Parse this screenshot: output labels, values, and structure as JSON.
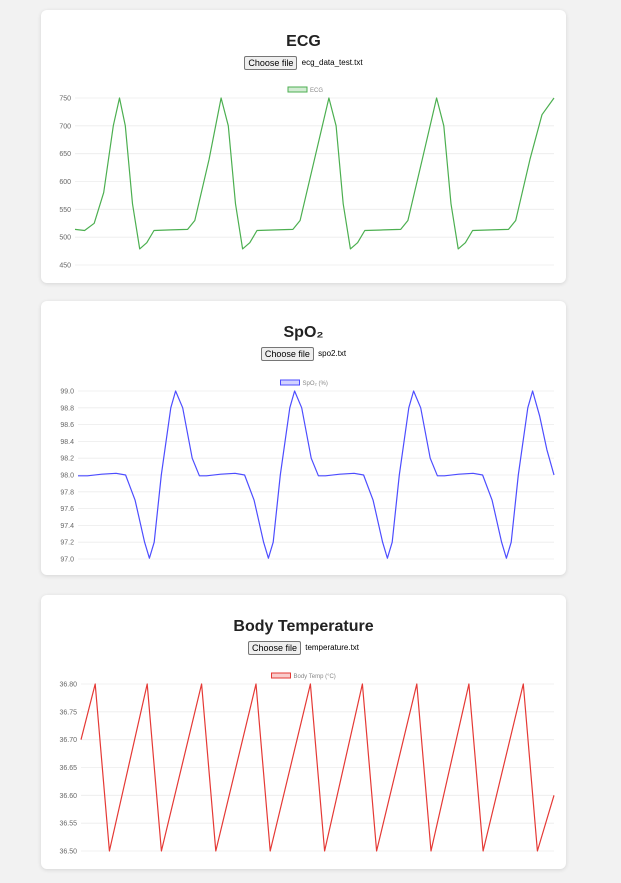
{
  "charts": {
    "ecg": {
      "title": "ECG",
      "button_label": "Choose file",
      "file_name": "ecg_data_test.txt"
    },
    "spo2": {
      "title": "SpO₂",
      "button_label": "Choose file",
      "file_name": "spo2.txt"
    },
    "temp": {
      "title": "Body Temperature",
      "button_label": "Choose file",
      "file_name": "temperature.txt"
    }
  },
  "chart_data": [
    {
      "id": "ecg",
      "type": "line",
      "title": "ECG",
      "series": [
        {
          "name": "ECG",
          "color": "#4caf50"
        }
      ],
      "ylim": [
        450,
        750
      ],
      "yticks": [
        "750",
        "700",
        "650",
        "600",
        "550",
        "500",
        "450"
      ],
      "grid": true,
      "legend": "top-center",
      "points": [
        [
          0.0,
          514
        ],
        [
          0.02,
          512
        ],
        [
          0.04,
          525
        ],
        [
          0.06,
          580
        ],
        [
          0.08,
          700
        ],
        [
          0.093,
          750
        ],
        [
          0.105,
          700
        ],
        [
          0.12,
          560
        ],
        [
          0.135,
          479
        ],
        [
          0.15,
          490
        ],
        [
          0.165,
          512
        ],
        [
          0.2,
          513
        ],
        [
          0.235,
          514
        ],
        [
          0.25,
          530
        ],
        [
          0.28,
          640
        ],
        [
          0.305,
          750
        ],
        [
          0.32,
          700
        ],
        [
          0.335,
          560
        ],
        [
          0.35,
          479
        ],
        [
          0.365,
          490
        ],
        [
          0.38,
          512
        ],
        [
          0.42,
          513
        ],
        [
          0.455,
          514
        ],
        [
          0.47,
          530
        ],
        [
          0.5,
          640
        ],
        [
          0.53,
          750
        ],
        [
          0.545,
          700
        ],
        [
          0.56,
          560
        ],
        [
          0.575,
          479
        ],
        [
          0.59,
          490
        ],
        [
          0.605,
          512
        ],
        [
          0.645,
          513
        ],
        [
          0.68,
          514
        ],
        [
          0.695,
          530
        ],
        [
          0.725,
          640
        ],
        [
          0.755,
          750
        ],
        [
          0.77,
          700
        ],
        [
          0.785,
          560
        ],
        [
          0.8,
          479
        ],
        [
          0.815,
          490
        ],
        [
          0.83,
          512
        ],
        [
          0.87,
          513
        ],
        [
          0.905,
          514
        ],
        [
          0.92,
          530
        ],
        [
          0.95,
          640
        ],
        [
          0.975,
          720
        ],
        [
          1.0,
          750
        ]
      ]
    },
    {
      "id": "spo2",
      "type": "line",
      "title": "SpO₂",
      "series": [
        {
          "name": "SpO₂ (%)",
          "color": "#4d4dff"
        }
      ],
      "ylim": [
        97.0,
        99.0
      ],
      "yticks": [
        "99.0",
        "98.8",
        "98.6",
        "98.4",
        "98.2",
        "98.0",
        "97.8",
        "97.6",
        "97.4",
        "97.2",
        "97.0"
      ],
      "grid": true,
      "legend": "top-center",
      "points": [
        [
          0.0,
          97.99
        ],
        [
          0.02,
          97.99
        ],
        [
          0.05,
          98.01
        ],
        [
          0.08,
          98.02
        ],
        [
          0.1,
          98.0
        ],
        [
          0.12,
          97.7
        ],
        [
          0.14,
          97.2
        ],
        [
          0.15,
          97.01
        ],
        [
          0.16,
          97.2
        ],
        [
          0.175,
          98.0
        ],
        [
          0.195,
          98.8
        ],
        [
          0.205,
          99.0
        ],
        [
          0.22,
          98.8
        ],
        [
          0.24,
          98.2
        ],
        [
          0.255,
          97.99
        ],
        [
          0.27,
          97.99
        ],
        [
          0.3,
          98.01
        ],
        [
          0.33,
          98.02
        ],
        [
          0.35,
          98.0
        ],
        [
          0.37,
          97.7
        ],
        [
          0.39,
          97.2
        ],
        [
          0.4,
          97.01
        ],
        [
          0.41,
          97.2
        ],
        [
          0.425,
          98.0
        ],
        [
          0.445,
          98.8
        ],
        [
          0.455,
          99.0
        ],
        [
          0.47,
          98.8
        ],
        [
          0.49,
          98.2
        ],
        [
          0.505,
          97.99
        ],
        [
          0.52,
          97.99
        ],
        [
          0.55,
          98.01
        ],
        [
          0.58,
          98.02
        ],
        [
          0.6,
          98.0
        ],
        [
          0.62,
          97.7
        ],
        [
          0.64,
          97.2
        ],
        [
          0.65,
          97.01
        ],
        [
          0.66,
          97.2
        ],
        [
          0.675,
          98.0
        ],
        [
          0.695,
          98.8
        ],
        [
          0.705,
          99.0
        ],
        [
          0.72,
          98.8
        ],
        [
          0.74,
          98.2
        ],
        [
          0.755,
          97.99
        ],
        [
          0.77,
          97.99
        ],
        [
          0.8,
          98.01
        ],
        [
          0.83,
          98.02
        ],
        [
          0.85,
          98.0
        ],
        [
          0.87,
          97.7
        ],
        [
          0.89,
          97.2
        ],
        [
          0.9,
          97.01
        ],
        [
          0.91,
          97.2
        ],
        [
          0.925,
          98.0
        ],
        [
          0.945,
          98.8
        ],
        [
          0.955,
          99.0
        ],
        [
          0.97,
          98.7
        ],
        [
          0.985,
          98.3
        ],
        [
          1.0,
          98.0
        ]
      ]
    },
    {
      "id": "temp",
      "type": "line",
      "title": "Body Temperature",
      "series": [
        {
          "name": "Body Temp (°C)",
          "color": "#e53935"
        }
      ],
      "ylim": [
        36.5,
        36.8
      ],
      "yticks": [
        "36.80",
        "36.75",
        "36.70",
        "36.65",
        "36.60",
        "36.55",
        "36.50"
      ],
      "grid": true,
      "legend": "top-center",
      "points": [
        [
          0.0,
          36.7
        ],
        [
          0.03,
          36.8
        ],
        [
          0.06,
          36.5
        ],
        [
          0.14,
          36.8
        ],
        [
          0.17,
          36.5
        ],
        [
          0.255,
          36.8
        ],
        [
          0.285,
          36.5
        ],
        [
          0.37,
          36.8
        ],
        [
          0.4,
          36.5
        ],
        [
          0.485,
          36.8
        ],
        [
          0.515,
          36.5
        ],
        [
          0.595,
          36.8
        ],
        [
          0.625,
          36.5
        ],
        [
          0.71,
          36.8
        ],
        [
          0.74,
          36.5
        ],
        [
          0.82,
          36.8
        ],
        [
          0.85,
          36.5
        ],
        [
          0.935,
          36.8
        ],
        [
          0.965,
          36.5
        ],
        [
          1.0,
          36.6
        ]
      ]
    }
  ]
}
